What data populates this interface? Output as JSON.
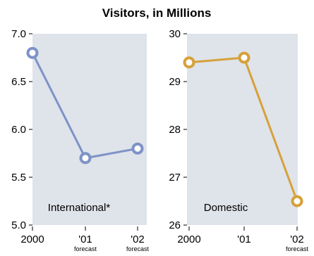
{
  "title": "Visitors, in Millions",
  "colors": {
    "panel_bg": "#dfe3ea",
    "axis": "#000000",
    "international": "#7d93c6",
    "domestic": "#d6a13a"
  },
  "chart_data": [
    {
      "type": "line",
      "label": "International*",
      "categories": [
        "2000",
        "'01",
        "'02"
      ],
      "sublabels": [
        "",
        "forecast",
        "forecast"
      ],
      "values": [
        6.8,
        5.7,
        5.8
      ],
      "ylim": [
        5.0,
        7.0
      ],
      "yticks": [
        "7.0",
        "6.5",
        "6.0",
        "5.5",
        "5.0"
      ],
      "ytick_values": [
        7.0,
        6.5,
        6.0,
        5.5,
        5.0
      ],
      "color": "#7d93c6"
    },
    {
      "type": "line",
      "label": "Domestic",
      "categories": [
        "2000",
        "'01",
        "'02"
      ],
      "sublabels": [
        "",
        "",
        "forecast"
      ],
      "values": [
        29.4,
        29.5,
        26.5
      ],
      "ylim": [
        26,
        30
      ],
      "yticks": [
        "30",
        "29",
        "28",
        "27",
        "26"
      ],
      "ytick_values": [
        30,
        29,
        28,
        27,
        26
      ],
      "color": "#d6a13a"
    }
  ]
}
